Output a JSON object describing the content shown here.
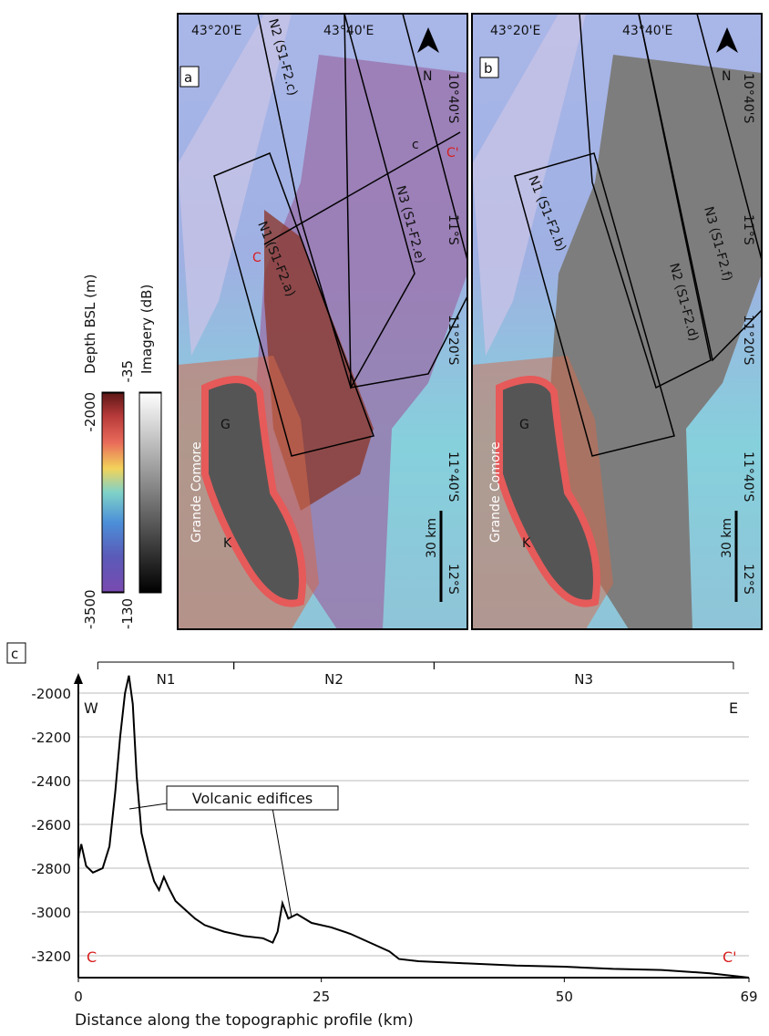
{
  "colorbars": [
    {
      "title": "Depth BSL (m)",
      "max": -2000,
      "min": -3500
    },
    {
      "title": "Imagery (dB)",
      "max": -35,
      "min": -130
    }
  ],
  "maps": [
    {
      "panel": "a",
      "lon_labels": [
        "43°20'E",
        "43°40'E"
      ],
      "lat_labels": [
        "10°40'S",
        "11°S",
        "11°20'S",
        "11°40'S",
        "12°S"
      ],
      "north": "N",
      "boxes": [
        "N1 (S1-F2.a)",
        "N2 (S1-F2.c)",
        "N3 (S1-F2.e)"
      ],
      "island": "Grande Comore",
      "volcanoes": [
        "G",
        "K"
      ],
      "scale": "30 km",
      "profile_labels": [
        "C",
        "C'",
        "c"
      ]
    },
    {
      "panel": "b",
      "lon_labels": [
        "43°20'E",
        "43°40'E"
      ],
      "lat_labels": [
        "10°40'S",
        "11°S",
        "11°20'S",
        "11°40'S",
        "12°S"
      ],
      "north": "N",
      "boxes": [
        "N1 (S1-F2.b)",
        "N2 (S1-F2.d)",
        "N3 (S1-F2.f)"
      ],
      "island": "Grande Comore",
      "volcanoes": [
        "G",
        "K"
      ],
      "scale": "30 km"
    }
  ],
  "chart_data": {
    "type": "line",
    "panel": "c",
    "xlabel": "Distance along the topographic profile (km)",
    "x": [
      0,
      0.3,
      0.8,
      1.5,
      2.5,
      3.2,
      3.8,
      4.3,
      4.8,
      5.2,
      5.6,
      6.0,
      6.5,
      7.2,
      7.8,
      8.3,
      8.8,
      9.3,
      10,
      11,
      12,
      13,
      15,
      17,
      19,
      20,
      20.5,
      21,
      21.6,
      22.5,
      24,
      26,
      28,
      30,
      32,
      33,
      35,
      40,
      45,
      50,
      55,
      60,
      65,
      69
    ],
    "values": [
      -2760,
      -2690,
      -2790,
      -2820,
      -2800,
      -2700,
      -2450,
      -2200,
      -2000,
      -1920,
      -2050,
      -2380,
      -2640,
      -2770,
      -2860,
      -2900,
      -2840,
      -2890,
      -2950,
      -2990,
      -3030,
      -3060,
      -3090,
      -3110,
      -3120,
      -3140,
      -3090,
      -2960,
      -3030,
      -3010,
      -3050,
      -3070,
      -3100,
      -3140,
      -3180,
      -3215,
      -3225,
      -3235,
      -3245,
      -3250,
      -3260,
      -3265,
      -3280,
      -3300
    ],
    "color": "#000000",
    "xlim": [
      0,
      69
    ],
    "xticks": [
      0,
      25,
      50,
      69
    ],
    "ylim": [
      -3300,
      -1900
    ],
    "yticks": [
      -2000,
      -2200,
      -2400,
      -2600,
      -2800,
      -3000,
      -3200
    ],
    "grid": true,
    "segments": [
      {
        "name": "N1",
        "start": 2,
        "end": 16
      },
      {
        "name": "N2",
        "start": 16,
        "end": 36.6
      },
      {
        "name": "N3",
        "start": 36.6,
        "end": 67.4
      }
    ],
    "annotation": "Volcanic edifices",
    "directions": [
      "W",
      "E"
    ],
    "profile_ends": [
      "C",
      "C'"
    ]
  }
}
